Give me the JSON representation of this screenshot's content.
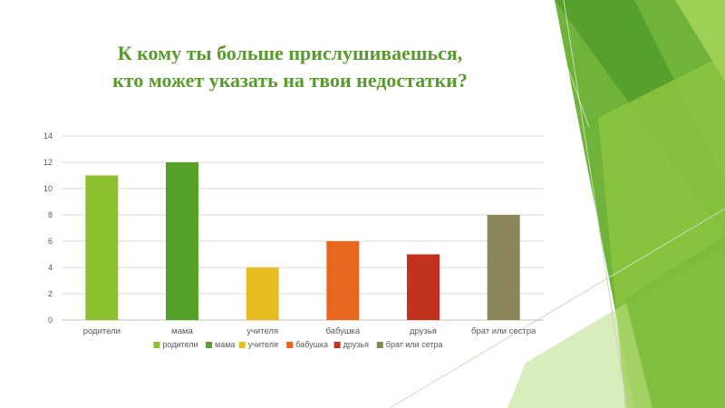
{
  "slide": {
    "title_line1": "К кому ты больше прислушиваешься,",
    "title_line2": "кто может указать на твои недостатки?"
  },
  "chart_data": {
    "type": "bar",
    "title": "",
    "xlabel": "",
    "ylabel": "",
    "categories": [
      "родители",
      "мама",
      "учителя",
      "бабушка",
      "друзья",
      "брат или сестра"
    ],
    "values": [
      11,
      12,
      4,
      6,
      5,
      8
    ],
    "colors": [
      "#8dc02e",
      "#55a12a",
      "#e5bc22",
      "#e8661e",
      "#c23220",
      "#8c8557"
    ],
    "legend_labels": [
      "родители",
      "мама",
      "учителя",
      "бабушка",
      "друзья",
      "брат или сетра"
    ],
    "ylim": [
      0,
      14
    ],
    "yticks": [
      0,
      2,
      4,
      6,
      8,
      10,
      12,
      14
    ],
    "grid": true,
    "legend_position": "bottom"
  }
}
